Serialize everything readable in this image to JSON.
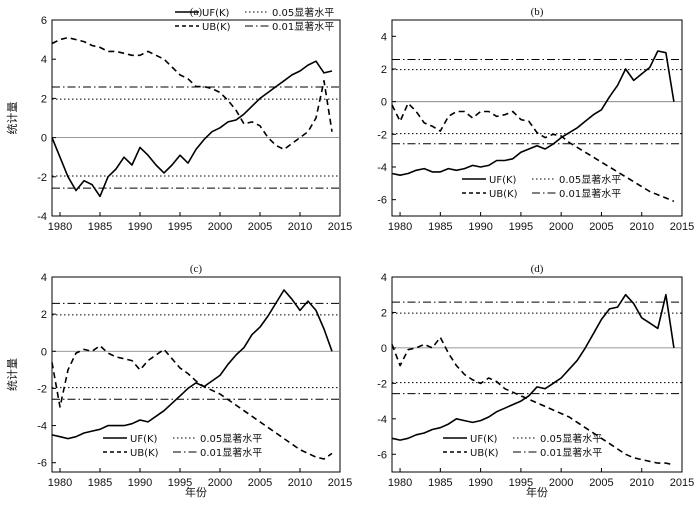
{
  "chart_data": [
    {
      "type": "line",
      "panel_label": "(a)",
      "xlabel": "",
      "ylabel": "统计量",
      "xlim": [
        1979,
        2015
      ],
      "ylim": [
        -4,
        6
      ],
      "xticks": [
        "1980",
        "1985",
        "1990",
        "1995",
        "2000",
        "2005",
        "2010",
        "2015"
      ],
      "yticks": [
        "-4",
        "-2",
        "0",
        "2",
        "4",
        "6"
      ],
      "legend_position": "top-right",
      "legend_layout": "2x2",
      "reference_lines": [
        {
          "name": "0.05显著水平",
          "values": [
            1.96,
            -1.96
          ],
          "style": "dotted"
        },
        {
          "name": "0.01显著水平",
          "values": [
            2.58,
            -2.58
          ],
          "style": "dashdot"
        }
      ],
      "series": [
        {
          "name": "UF(K)",
          "style": "solid",
          "x": [
            1979,
            1980,
            1981,
            1982,
            1983,
            1984,
            1985,
            1986,
            1987,
            1988,
            1989,
            1990,
            1991,
            1992,
            1993,
            1994,
            1995,
            1996,
            1997,
            1998,
            1999,
            2000,
            2001,
            2002,
            2003,
            2004,
            2005,
            2006,
            2007,
            2008,
            2009,
            2010,
            2011,
            2012,
            2013,
            2014
          ],
          "y": [
            0.0,
            -1.0,
            -2.0,
            -2.7,
            -2.2,
            -2.4,
            -3.0,
            -2.0,
            -1.6,
            -1.0,
            -1.4,
            -0.5,
            -0.9,
            -1.4,
            -1.8,
            -1.4,
            -0.9,
            -1.3,
            -0.6,
            -0.1,
            0.3,
            0.5,
            0.8,
            0.9,
            1.2,
            1.6,
            2.0,
            2.3,
            2.6,
            2.9,
            3.2,
            3.4,
            3.7,
            3.9,
            3.3,
            3.4
          ]
        },
        {
          "name": "UB(K)",
          "style": "dashed",
          "x": [
            1979,
            1980,
            1981,
            1982,
            1983,
            1984,
            1985,
            1986,
            1987,
            1988,
            1989,
            1990,
            1991,
            1992,
            1993,
            1994,
            1995,
            1996,
            1997,
            1998,
            1999,
            2000,
            2001,
            2002,
            2003,
            2004,
            2005,
            2006,
            2007,
            2008,
            2009,
            2010,
            2011,
            2012,
            2013,
            2014
          ],
          "y": [
            4.8,
            5.0,
            5.1,
            5.0,
            4.9,
            4.7,
            4.6,
            4.4,
            4.4,
            4.3,
            4.2,
            4.2,
            4.4,
            4.2,
            4.0,
            3.6,
            3.2,
            3.0,
            2.6,
            2.6,
            2.5,
            2.3,
            1.9,
            1.4,
            0.7,
            0.8,
            0.6,
            0.0,
            -0.4,
            -0.6,
            -0.3,
            0.0,
            0.3,
            1.0,
            2.9,
            0.3
          ]
        }
      ]
    },
    {
      "type": "line",
      "panel_label": "(b)",
      "xlabel": "",
      "ylabel": "",
      "xlim": [
        1979,
        2015
      ],
      "ylim": [
        -7,
        5
      ],
      "xticks": [
        "1980",
        "1985",
        "1990",
        "1995",
        "2000",
        "2005",
        "2010",
        "2015"
      ],
      "yticks": [
        "-6",
        "-4",
        "-2",
        "0",
        "2",
        "4"
      ],
      "legend_position": "bottom-left",
      "legend_layout": "2x2",
      "reference_lines": [
        {
          "name": "0.05显著水平",
          "values": [
            1.96,
            -1.96
          ],
          "style": "dotted"
        },
        {
          "name": "0.01显著水平",
          "values": [
            2.58,
            -2.58
          ],
          "style": "dashdot"
        }
      ],
      "series": [
        {
          "name": "UF(K)",
          "style": "solid",
          "x": [
            1979,
            1980,
            1981,
            1982,
            1983,
            1984,
            1985,
            1986,
            1987,
            1988,
            1989,
            1990,
            1991,
            1992,
            1993,
            1994,
            1995,
            1996,
            1997,
            1998,
            1999,
            2000,
            2001,
            2002,
            2003,
            2004,
            2005,
            2006,
            2007,
            2008,
            2009,
            2010,
            2011,
            2012,
            2013,
            2014
          ],
          "y": [
            -4.4,
            -4.5,
            -4.4,
            -4.2,
            -4.1,
            -4.3,
            -4.3,
            -4.1,
            -4.2,
            -4.1,
            -3.9,
            -4.0,
            -3.9,
            -3.6,
            -3.6,
            -3.5,
            -3.1,
            -2.9,
            -2.7,
            -2.9,
            -2.6,
            -2.2,
            -1.9,
            -1.6,
            -1.2,
            -0.8,
            -0.5,
            0.3,
            1.0,
            2.0,
            1.3,
            1.7,
            2.1,
            3.1,
            3.0,
            0.0
          ]
        },
        {
          "name": "UB(K)",
          "style": "dashed",
          "x": [
            1979,
            1980,
            1981,
            1982,
            1983,
            1984,
            1985,
            1986,
            1987,
            1988,
            1989,
            1990,
            1991,
            1992,
            1993,
            1994,
            1995,
            1996,
            1997,
            1998,
            1999,
            2000,
            2001,
            2002,
            2003,
            2004,
            2005,
            2006,
            2007,
            2008,
            2009,
            2010,
            2011,
            2012,
            2013,
            2014
          ],
          "y": [
            -0.2,
            -1.2,
            -0.1,
            -0.6,
            -1.3,
            -1.5,
            -1.8,
            -0.9,
            -0.6,
            -0.6,
            -1.0,
            -0.6,
            -0.6,
            -0.9,
            -0.8,
            -0.6,
            -1.1,
            -1.2,
            -1.9,
            -2.2,
            -2.0,
            -2.1,
            -2.5,
            -2.8,
            -3.1,
            -3.4,
            -3.7,
            -4.0,
            -4.3,
            -4.6,
            -4.9,
            -5.2,
            -5.5,
            -5.7,
            -5.9,
            -6.1
          ]
        }
      ]
    },
    {
      "type": "line",
      "panel_label": "(c)",
      "xlabel": "年份",
      "ylabel": "统计量",
      "xlim": [
        1979,
        2015
      ],
      "ylim": [
        -6.5,
        4
      ],
      "xticks": [
        "1980",
        "1985",
        "1990",
        "1995",
        "2000",
        "2005",
        "2010",
        "2015"
      ],
      "yticks": [
        "-6",
        "-4",
        "-2",
        "0",
        "2",
        "4"
      ],
      "legend_position": "bottom-left",
      "legend_layout": "2x2",
      "reference_lines": [
        {
          "name": "0.05显著水平",
          "values": [
            1.96,
            -1.96
          ],
          "style": "dotted"
        },
        {
          "name": "0.01显著水平",
          "values": [
            2.58,
            -2.58
          ],
          "style": "dashdot"
        }
      ],
      "series": [
        {
          "name": "UF(K)",
          "style": "solid",
          "x": [
            1979,
            1980,
            1981,
            1982,
            1983,
            1984,
            1985,
            1986,
            1987,
            1988,
            1989,
            1990,
            1991,
            1992,
            1993,
            1994,
            1995,
            1996,
            1997,
            1998,
            1999,
            2000,
            2001,
            2002,
            2003,
            2004,
            2005,
            2006,
            2007,
            2008,
            2009,
            2010,
            2011,
            2012,
            2013,
            2014
          ],
          "y": [
            -4.5,
            -4.6,
            -4.7,
            -4.6,
            -4.4,
            -4.3,
            -4.2,
            -4.0,
            -4.0,
            -4.0,
            -3.9,
            -3.7,
            -3.8,
            -3.5,
            -3.2,
            -2.8,
            -2.4,
            -2.0,
            -1.7,
            -1.9,
            -1.6,
            -1.3,
            -0.7,
            -0.2,
            0.2,
            0.9,
            1.3,
            1.9,
            2.6,
            3.3,
            2.8,
            2.2,
            2.7,
            2.2,
            1.2,
            0.0
          ]
        },
        {
          "name": "UB(K)",
          "style": "dashed",
          "x": [
            1979,
            1980,
            1981,
            1982,
            1983,
            1984,
            1985,
            1986,
            1987,
            1988,
            1989,
            1990,
            1991,
            1992,
            1993,
            1994,
            1995,
            1996,
            1997,
            1998,
            1999,
            2000,
            2001,
            2002,
            2003,
            2004,
            2005,
            2006,
            2007,
            2008,
            2009,
            2010,
            2011,
            2012,
            2013,
            2014
          ],
          "y": [
            -0.6,
            -3.0,
            -1.0,
            -0.1,
            0.1,
            0.0,
            0.3,
            -0.1,
            -0.3,
            -0.4,
            -0.5,
            -1.0,
            -0.5,
            -0.2,
            0.1,
            -0.4,
            -0.9,
            -1.2,
            -1.6,
            -1.9,
            -2.1,
            -2.3,
            -2.6,
            -2.9,
            -3.2,
            -3.5,
            -3.8,
            -4.1,
            -4.4,
            -4.7,
            -5.0,
            -5.3,
            -5.5,
            -5.7,
            -5.8,
            -5.5
          ]
        }
      ]
    },
    {
      "type": "line",
      "panel_label": "(d)",
      "xlabel": "年份",
      "ylabel": "",
      "xlim": [
        1979,
        2015
      ],
      "ylim": [
        -7,
        4
      ],
      "xticks": [
        "1980",
        "1985",
        "1990",
        "1995",
        "2000",
        "2005",
        "2010",
        "2015"
      ],
      "yticks": [
        "-6",
        "-4",
        "-2",
        "0",
        "2",
        "4"
      ],
      "legend_position": "bottom-left",
      "legend_layout": "2x2",
      "reference_lines": [
        {
          "name": "0.05显著水平",
          "values": [
            1.96,
            -1.96
          ],
          "style": "dotted"
        },
        {
          "name": "0.01显著水平",
          "values": [
            2.58,
            -2.58
          ],
          "style": "dashdot"
        }
      ],
      "series": [
        {
          "name": "UF(K)",
          "style": "solid",
          "x": [
            1979,
            1980,
            1981,
            1982,
            1983,
            1984,
            1985,
            1986,
            1987,
            1988,
            1989,
            1990,
            1991,
            1992,
            1993,
            1994,
            1995,
            1996,
            1997,
            1998,
            1999,
            2000,
            2001,
            2002,
            2003,
            2004,
            2005,
            2006,
            2007,
            2008,
            2009,
            2010,
            2011,
            2012,
            2013,
            2014
          ],
          "y": [
            -5.1,
            -5.2,
            -5.1,
            -4.9,
            -4.8,
            -4.6,
            -4.5,
            -4.3,
            -4.0,
            -4.1,
            -4.2,
            -4.1,
            -3.9,
            -3.6,
            -3.4,
            -3.2,
            -3.0,
            -2.7,
            -2.2,
            -2.3,
            -2.0,
            -1.7,
            -1.2,
            -0.7,
            0.0,
            0.8,
            1.6,
            2.2,
            2.3,
            3.0,
            2.5,
            1.7,
            1.4,
            1.1,
            3.0,
            0.0
          ]
        },
        {
          "name": "UB(K)",
          "style": "dashed",
          "x": [
            1979,
            1980,
            1981,
            1982,
            1983,
            1984,
            1985,
            1986,
            1987,
            1988,
            1989,
            1990,
            1991,
            1992,
            1993,
            1994,
            1995,
            1996,
            1997,
            1998,
            1999,
            2000,
            2001,
            2002,
            2003,
            2004,
            2005,
            2006,
            2007,
            2008,
            2009,
            2010,
            2011,
            2012,
            2013,
            2014
          ],
          "y": [
            0.2,
            -1.0,
            -0.1,
            0.0,
            0.2,
            0.0,
            0.6,
            -0.3,
            -1.0,
            -1.5,
            -1.8,
            -2.0,
            -1.7,
            -1.9,
            -2.3,
            -2.5,
            -2.7,
            -2.9,
            -3.1,
            -3.3,
            -3.5,
            -3.7,
            -3.9,
            -4.2,
            -4.5,
            -4.8,
            -5.1,
            -5.4,
            -5.7,
            -6.0,
            -6.2,
            -6.3,
            -6.4,
            -6.5,
            -6.5,
            -6.6
          ]
        }
      ]
    }
  ]
}
